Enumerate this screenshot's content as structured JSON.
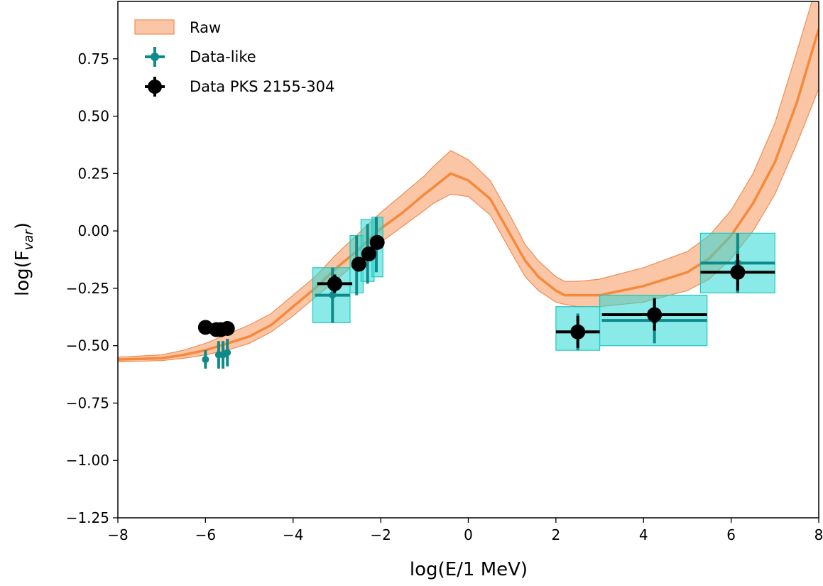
{
  "chart_data": {
    "type": "scatter",
    "xlabel": "log(E/1 MeV)",
    "ylabel_main": "log(F",
    "ylabel_sub": "var",
    "ylabel_end": ")",
    "xlim": [
      -8,
      8
    ],
    "ylim": [
      -1.25,
      1.0
    ],
    "xticks": [
      -8,
      -6,
      -4,
      -2,
      0,
      2,
      4,
      6,
      8
    ],
    "xtick_labels": [
      "−8",
      "−6",
      "−4",
      "−2",
      "0",
      "2",
      "4",
      "6",
      "8"
    ],
    "yticks": [
      -1.25,
      -1.0,
      -0.75,
      -0.5,
      -0.25,
      0.0,
      0.25,
      0.5,
      0.75
    ],
    "ytick_labels": [
      "−1.25",
      "−1.00",
      "−0.75",
      "−0.50",
      "−0.25",
      "0.00",
      "0.25",
      "0.50",
      "0.75"
    ],
    "grid": false,
    "legend_position": "top-left",
    "legend": [
      "Raw",
      "Data-like",
      "Data PKS 2155-304"
    ],
    "colors": {
      "band_fill": "#f9a06a",
      "band_edge": "#ee8c55",
      "median_line": "#f5893c",
      "data_like": "#0f8a8a",
      "box_fill": "#2ad9d3",
      "box_edge": "#22c7c2",
      "data": "#000000"
    },
    "band": {
      "x": [
        -8,
        -7,
        -6.5,
        -6,
        -5.5,
        -5,
        -4.5,
        -4,
        -3.5,
        -3,
        -2.5,
        -2,
        -1.5,
        -1,
        -0.8,
        -0.4,
        0,
        0.5,
        1,
        1.3,
        1.6,
        2,
        2.2,
        2.5,
        3,
        4,
        5,
        5.5,
        6,
        6.5,
        7,
        7.5,
        8
      ],
      "lower": [
        -0.57,
        -0.565,
        -0.555,
        -0.54,
        -0.52,
        -0.49,
        -0.44,
        -0.37,
        -0.29,
        -0.21,
        -0.13,
        -0.05,
        0.02,
        0.09,
        0.12,
        0.16,
        0.15,
        0.07,
        -0.1,
        -0.2,
        -0.26,
        -0.31,
        -0.32,
        -0.33,
        -0.33,
        -0.31,
        -0.26,
        -0.21,
        -0.12,
        0.0,
        0.16,
        0.38,
        0.62
      ],
      "median": [
        -0.56,
        -0.555,
        -0.54,
        -0.52,
        -0.49,
        -0.46,
        -0.41,
        -0.33,
        -0.25,
        -0.16,
        -0.08,
        0.01,
        0.08,
        0.16,
        0.19,
        0.25,
        0.22,
        0.14,
        -0.03,
        -0.13,
        -0.2,
        -0.26,
        -0.28,
        -0.28,
        -0.28,
        -0.24,
        -0.18,
        -0.12,
        -0.02,
        0.12,
        0.3,
        0.56,
        0.88
      ],
      "upper": [
        -0.55,
        -0.54,
        -0.52,
        -0.49,
        -0.45,
        -0.41,
        -0.36,
        -0.28,
        -0.2,
        -0.1,
        -0.01,
        0.08,
        0.16,
        0.24,
        0.28,
        0.35,
        0.31,
        0.22,
        0.05,
        -0.06,
        -0.13,
        -0.2,
        -0.22,
        -0.22,
        -0.21,
        -0.16,
        -0.09,
        -0.02,
        0.09,
        0.25,
        0.47,
        0.78,
        1.1
      ]
    },
    "data_like": [
      {
        "x": -6.0,
        "y": -0.56,
        "xerr": 0.06,
        "yerr": 0.04
      },
      {
        "x": -5.7,
        "y": -0.54,
        "xerr": 0.06,
        "yerr": 0.06
      },
      {
        "x": -5.6,
        "y": -0.54,
        "xerr": 0.06,
        "yerr": 0.06
      },
      {
        "x": -5.5,
        "y": -0.53,
        "xerr": 0.06,
        "yerr": 0.06
      },
      {
        "x": -3.1,
        "y": -0.28,
        "xerr": 0.4,
        "yerr": 0.12
      },
      {
        "x": -2.55,
        "y": -0.15,
        "xerr": 0.1,
        "yerr": 0.13
      },
      {
        "x": -2.3,
        "y": -0.1,
        "xerr": 0.1,
        "yerr": 0.13
      },
      {
        "x": -2.1,
        "y": -0.06,
        "xerr": 0.1,
        "yerr": 0.12
      },
      {
        "x": 2.5,
        "y": -0.44,
        "xerr": 0.5,
        "yerr": 0.08
      },
      {
        "x": 4.25,
        "y": -0.39,
        "xerr": 1.2,
        "yerr": 0.1
      },
      {
        "x": 6.15,
        "y": -0.14,
        "xerr": 0.85,
        "yerr": 0.13
      }
    ],
    "boxes": [
      {
        "x0": -3.55,
        "x1": -2.7,
        "y0": -0.4,
        "y1": -0.16
      },
      {
        "x0": -2.7,
        "x1": -2.4,
        "y0": -0.27,
        "y1": -0.02
      },
      {
        "x0": -2.45,
        "x1": -2.15,
        "y0": -0.22,
        "y1": 0.05
      },
      {
        "x0": -2.2,
        "x1": -1.95,
        "y0": -0.2,
        "y1": 0.06
      },
      {
        "x0": 2.0,
        "x1": 3.0,
        "y0": -0.52,
        "y1": -0.33
      },
      {
        "x0": 3.0,
        "x1": 5.45,
        "y0": -0.5,
        "y1": -0.28
      },
      {
        "x0": 5.3,
        "x1": 7.0,
        "y0": -0.27,
        "y1": -0.01
      }
    ],
    "data": [
      {
        "x": -6.0,
        "y": -0.42,
        "xerr": 0,
        "yerr": 0
      },
      {
        "x": -5.75,
        "y": -0.43,
        "xerr": 0,
        "yerr": 0
      },
      {
        "x": -5.65,
        "y": -0.43,
        "xerr": 0,
        "yerr": 0
      },
      {
        "x": -5.5,
        "y": -0.425,
        "xerr": 0,
        "yerr": 0
      },
      {
        "x": -3.05,
        "y": -0.23,
        "xerr": 0.4,
        "yerr": 0.04
      },
      {
        "x": -2.5,
        "y": -0.145,
        "xerr": 0,
        "yerr": 0
      },
      {
        "x": -2.27,
        "y": -0.1,
        "xerr": 0,
        "yerr": 0
      },
      {
        "x": -2.08,
        "y": -0.05,
        "xerr": 0,
        "yerr": 0
      },
      {
        "x": 2.5,
        "y": -0.44,
        "xerr": 0.5,
        "yerr": 0.07
      },
      {
        "x": 4.25,
        "y": -0.365,
        "xerr": 1.2,
        "yerr": 0.07
      },
      {
        "x": 6.15,
        "y": -0.18,
        "xerr": 0.85,
        "yerr": 0.08
      }
    ]
  }
}
